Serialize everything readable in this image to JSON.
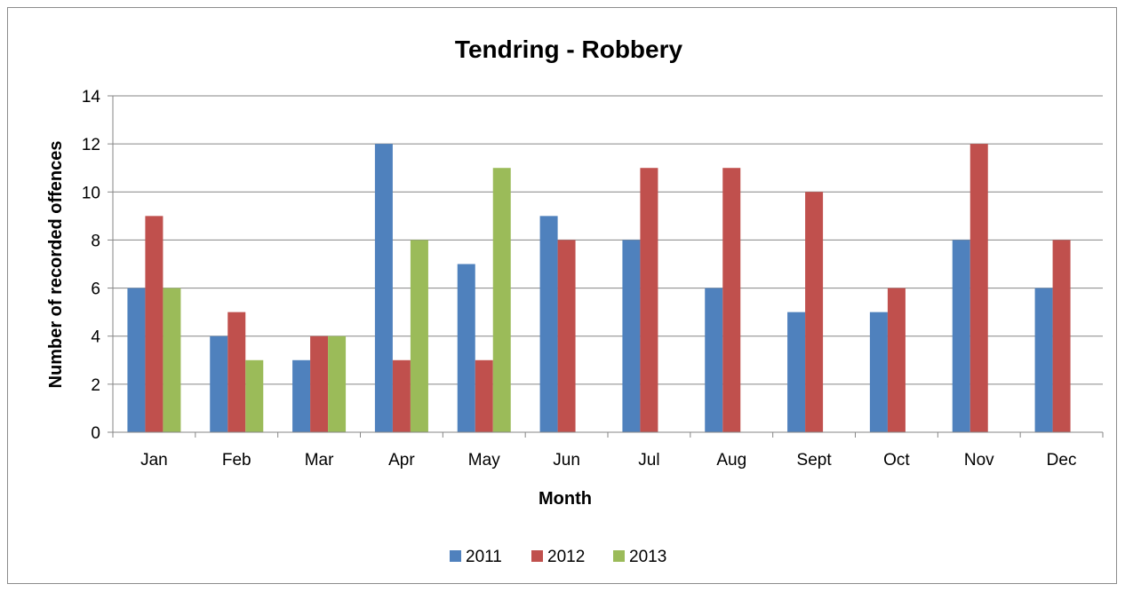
{
  "chart_data": {
    "type": "bar",
    "title": "Tendring - Robbery",
    "xlabel": "Month",
    "ylabel": "Number of recorded offences",
    "categories": [
      "Jan",
      "Feb",
      "Mar",
      "Apr",
      "May",
      "Jun",
      "Jul",
      "Aug",
      "Sept",
      "Oct",
      "Nov",
      "Dec"
    ],
    "series": [
      {
        "name": "2011",
        "color": "#4F81BD",
        "values": [
          6,
          4,
          3,
          12,
          7,
          9,
          8,
          6,
          5,
          5,
          8,
          6
        ]
      },
      {
        "name": "2012",
        "color": "#C0504D",
        "values": [
          9,
          5,
          4,
          3,
          3,
          8,
          11,
          11,
          10,
          6,
          12,
          8
        ]
      },
      {
        "name": "2013",
        "color": "#9BBB59",
        "values": [
          6,
          3,
          4,
          8,
          11,
          null,
          null,
          null,
          null,
          null,
          null,
          null
        ]
      }
    ],
    "ylim": [
      0,
      14
    ],
    "yticks": [
      0,
      2,
      4,
      6,
      8,
      10,
      12,
      14
    ],
    "grid": true,
    "legend_position": "bottom"
  }
}
